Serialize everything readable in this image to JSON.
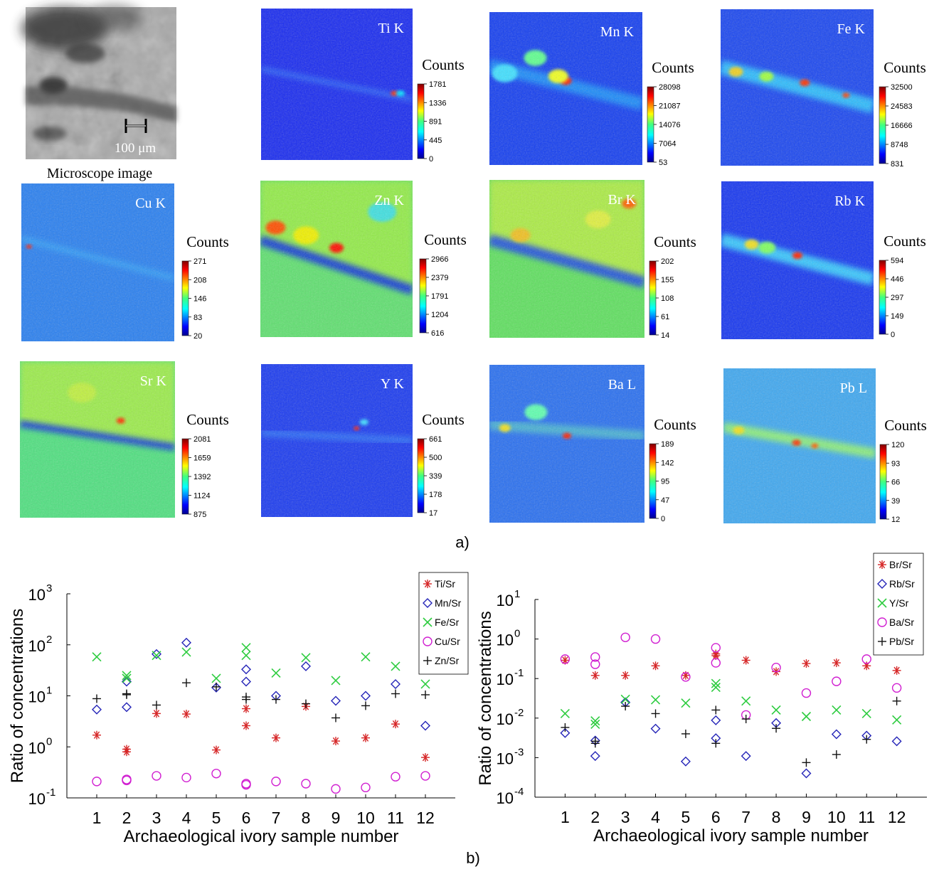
{
  "figure": {
    "panel_a_label": "a)",
    "panel_b_label": "b)",
    "microscope_caption": "Microscope image",
    "scale_bar": "100 μm"
  },
  "maps": [
    {
      "label": "Ti K",
      "colorbar_title": "Counts",
      "ticks": [
        "1781",
        "1336",
        "891",
        "445",
        "0"
      ],
      "palette": "ti"
    },
    {
      "label": "Mn K",
      "colorbar_title": "Counts",
      "ticks": [
        "28098",
        "21087",
        "14076",
        "7064",
        "53"
      ],
      "palette": "mn"
    },
    {
      "label": "Fe K",
      "colorbar_title": "Counts",
      "ticks": [
        "32500",
        "24583",
        "16666",
        "8748",
        "831"
      ],
      "palette": "fe"
    },
    {
      "label": "Cu K",
      "colorbar_title": "Counts",
      "ticks": [
        "271",
        "208",
        "146",
        "83",
        "20"
      ],
      "palette": "cu"
    },
    {
      "label": "Zn K",
      "colorbar_title": "Counts",
      "ticks": [
        "2966",
        "2379",
        "1791",
        "1204",
        "616"
      ],
      "palette": "zn"
    },
    {
      "label": "Br K",
      "colorbar_title": "Counts",
      "ticks": [
        "202",
        "155",
        "108",
        "61",
        "14"
      ],
      "palette": "br"
    },
    {
      "label": "Rb K",
      "colorbar_title": "Counts",
      "ticks": [
        "594",
        "446",
        "297",
        "149",
        "0"
      ],
      "palette": "rb"
    },
    {
      "label": "Sr K",
      "colorbar_title": "Counts",
      "ticks": [
        "2081",
        "1659",
        "1392",
        "1124",
        "875"
      ],
      "palette": "sr"
    },
    {
      "label": "Y K",
      "colorbar_title": "Counts",
      "ticks": [
        "661",
        "500",
        "339",
        "178",
        "17"
      ],
      "palette": "y"
    },
    {
      "label": "Ba L",
      "colorbar_title": "Counts",
      "ticks": [
        "189",
        "142",
        "95",
        "47",
        "0"
      ],
      "palette": "ba"
    },
    {
      "label": "Pb L",
      "colorbar_title": "Counts",
      "ticks": [
        "120",
        "93",
        "66",
        "39",
        "12"
      ],
      "palette": "pb"
    }
  ],
  "chart_data": [
    {
      "type": "scatter",
      "xlabel": "Archaeological ivory sample number",
      "ylabel": "Ratio of concentrations",
      "y_scale": "log",
      "ylim": [
        0.1,
        1000
      ],
      "xlim": [
        0,
        13
      ],
      "x_ticks": [
        1,
        2,
        3,
        4,
        5,
        6,
        7,
        8,
        9,
        10,
        11,
        12
      ],
      "y_tick_labels": [
        "10",
        "10",
        "10",
        "10",
        "10"
      ],
      "y_tick_exponents": [
        "-1",
        "0",
        "1",
        "2",
        "3"
      ],
      "legend_position": "top-right",
      "series": [
        {
          "name": "Ti/Sr",
          "marker": "asterisk",
          "color": "#d62728",
          "points": [
            [
              1,
              1.7
            ],
            [
              2,
              0.8
            ],
            [
              2,
              0.9
            ],
            [
              3,
              4.5
            ],
            [
              4,
              4.4
            ],
            [
              5,
              0.87
            ],
            [
              6,
              2.6
            ],
            [
              6,
              5.6
            ],
            [
              7,
              1.5
            ],
            [
              8,
              6.2
            ],
            [
              9,
              1.3
            ],
            [
              10,
              1.5
            ],
            [
              11,
              2.8
            ],
            [
              12,
              0.62
            ]
          ]
        },
        {
          "name": "Mn/Sr",
          "marker": "diamond",
          "color": "#2525b8",
          "points": [
            [
              1,
              5.4
            ],
            [
              2,
              6.0
            ],
            [
              2,
              19
            ],
            [
              3,
              66
            ],
            [
              4,
              110
            ],
            [
              5,
              14.5
            ],
            [
              6,
              19
            ],
            [
              6,
              33
            ],
            [
              7,
              10
            ],
            [
              8,
              38
            ],
            [
              9,
              8
            ],
            [
              10,
              10
            ],
            [
              11,
              17
            ],
            [
              12,
              2.6
            ]
          ]
        },
        {
          "name": "Fe/Sr",
          "marker": "x",
          "color": "#2ecc40",
          "points": [
            [
              1,
              58
            ],
            [
              2,
              25
            ],
            [
              2,
              22
            ],
            [
              3,
              62
            ],
            [
              4,
              72
            ],
            [
              5,
              22
            ],
            [
              6,
              88
            ],
            [
              6,
              62
            ],
            [
              7,
              28
            ],
            [
              8,
              56
            ],
            [
              9,
              20
            ],
            [
              10,
              58
            ],
            [
              11,
              38
            ],
            [
              12,
              17
            ]
          ]
        },
        {
          "name": "Cu/Sr",
          "marker": "circle",
          "color": "#d11fd1",
          "points": [
            [
              1,
              0.21
            ],
            [
              2,
              0.22
            ],
            [
              2,
              0.23
            ],
            [
              3,
              0.27
            ],
            [
              4,
              0.25
            ],
            [
              5,
              0.3
            ],
            [
              6,
              0.18
            ],
            [
              6,
              0.19
            ],
            [
              7,
              0.21
            ],
            [
              8,
              0.19
            ],
            [
              9,
              0.15
            ],
            [
              10,
              0.16
            ],
            [
              11,
              0.26
            ],
            [
              12,
              0.27
            ]
          ]
        },
        {
          "name": "Zn/Sr",
          "marker": "plus",
          "color": "#111111",
          "points": [
            [
              1,
              8.8
            ],
            [
              2,
              11
            ],
            [
              2,
              10.5
            ],
            [
              3,
              6.6
            ],
            [
              4,
              18
            ],
            [
              5,
              15
            ],
            [
              6,
              9.5
            ],
            [
              6,
              8.5
            ],
            [
              7,
              8.5
            ],
            [
              8,
              7
            ],
            [
              9,
              3.7
            ],
            [
              10,
              6.4
            ],
            [
              11,
              11
            ],
            [
              12,
              10.5
            ]
          ]
        }
      ]
    },
    {
      "type": "scatter",
      "xlabel": "Archaeological ivory sample number",
      "ylabel": "Ratio of concentrations",
      "y_scale": "log",
      "ylim": [
        0.0001,
        10
      ],
      "xlim": [
        0,
        13
      ],
      "x_ticks": [
        1,
        2,
        3,
        4,
        5,
        6,
        7,
        8,
        9,
        10,
        11,
        12
      ],
      "y_tick_labels": [
        "10",
        "10",
        "10",
        "10",
        "10",
        "10"
      ],
      "y_tick_exponents": [
        "-4",
        "-3",
        "-2",
        "-1",
        "0",
        "1"
      ],
      "legend_position": "top-right",
      "series": [
        {
          "name": "Br/Sr",
          "marker": "asterisk",
          "color": "#d62728",
          "points": [
            [
              1,
              0.29
            ],
            [
              2,
              0.12
            ],
            [
              3,
              0.12
            ],
            [
              4,
              0.21
            ],
            [
              5,
              0.12
            ],
            [
              6,
              0.38
            ],
            [
              6,
              0.42
            ],
            [
              7,
              0.29
            ],
            [
              8,
              0.15
            ],
            [
              9,
              0.24
            ],
            [
              10,
              0.25
            ],
            [
              11,
              0.21
            ],
            [
              12,
              0.16
            ]
          ]
        },
        {
          "name": "Rb/Sr",
          "marker": "diamond",
          "color": "#2525b8",
          "points": [
            [
              1,
              0.0042
            ],
            [
              2,
              0.0027
            ],
            [
              2,
              0.0011
            ],
            [
              3,
              0.025
            ],
            [
              4,
              0.0054
            ],
            [
              5,
              0.0008
            ],
            [
              6,
              0.0031
            ],
            [
              6,
              0.0088
            ],
            [
              7,
              0.0011
            ],
            [
              8,
              0.0075
            ],
            [
              9,
              0.0004
            ],
            [
              10,
              0.0039
            ],
            [
              11,
              0.0036
            ],
            [
              12,
              0.0026
            ]
          ]
        },
        {
          "name": "Y/Sr",
          "marker": "x",
          "color": "#2ecc40",
          "points": [
            [
              1,
              0.013
            ],
            [
              2,
              0.0085
            ],
            [
              2,
              0.007
            ],
            [
              3,
              0.03
            ],
            [
              4,
              0.029
            ],
            [
              5,
              0.024
            ],
            [
              6,
              0.06
            ],
            [
              6,
              0.075
            ],
            [
              7,
              0.027
            ],
            [
              8,
              0.016
            ],
            [
              9,
              0.011
            ],
            [
              10,
              0.016
            ],
            [
              11,
              0.013
            ],
            [
              12,
              0.009
            ]
          ]
        },
        {
          "name": "Ba/Sr",
          "marker": "circle",
          "color": "#d11fd1",
          "points": [
            [
              1,
              0.31
            ],
            [
              2,
              0.35
            ],
            [
              2,
              0.23
            ],
            [
              3,
              1.1
            ],
            [
              4,
              1.0
            ],
            [
              5,
              0.11
            ],
            [
              6,
              0.6
            ],
            [
              6,
              0.25
            ],
            [
              7,
              0.012
            ],
            [
              8,
              0.19
            ],
            [
              9,
              0.043
            ],
            [
              10,
              0.085
            ],
            [
              11,
              0.31
            ],
            [
              12,
              0.058
            ]
          ]
        },
        {
          "name": "Pb/Sr",
          "marker": "plus",
          "color": "#111111",
          "points": [
            [
              1,
              0.0058
            ],
            [
              2,
              0.0026
            ],
            [
              2,
              0.0023
            ],
            [
              3,
              0.02
            ],
            [
              4,
              0.013
            ],
            [
              5,
              0.004
            ],
            [
              6,
              0.016
            ],
            [
              6,
              0.0023
            ],
            [
              7,
              0.0095
            ],
            [
              8,
              0.0055
            ],
            [
              9,
              0.00075
            ],
            [
              10,
              0.0012
            ],
            [
              11,
              0.0029
            ],
            [
              12,
              0.027
            ]
          ]
        }
      ]
    }
  ]
}
